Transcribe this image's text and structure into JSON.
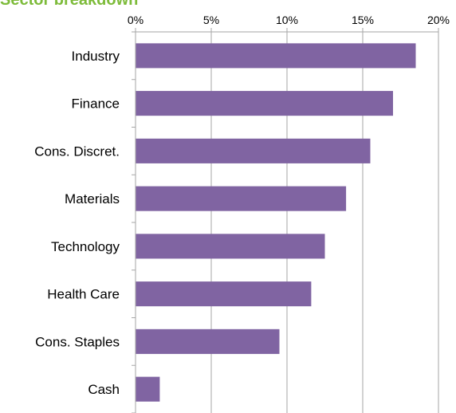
{
  "chart_data": {
    "type": "bar",
    "orientation": "horizontal",
    "title": "Sector breakdown",
    "categories": [
      "Industry",
      "Finance",
      "Cons. Discret.",
      "Materials",
      "Technology",
      "Health Care",
      "Cons. Staples",
      "Cash"
    ],
    "values": [
      18.5,
      17.0,
      15.5,
      13.9,
      12.5,
      11.6,
      9.5,
      1.6
    ],
    "xlim": [
      0,
      20
    ],
    "xticks": [
      "0%",
      "5%",
      "10%",
      "15%",
      "20%"
    ],
    "xaxis_position": "top",
    "grid": true,
    "bar_color": "#8064a2",
    "grid_color": "#a6a6a6",
    "title_color": "#7dbb3a"
  }
}
